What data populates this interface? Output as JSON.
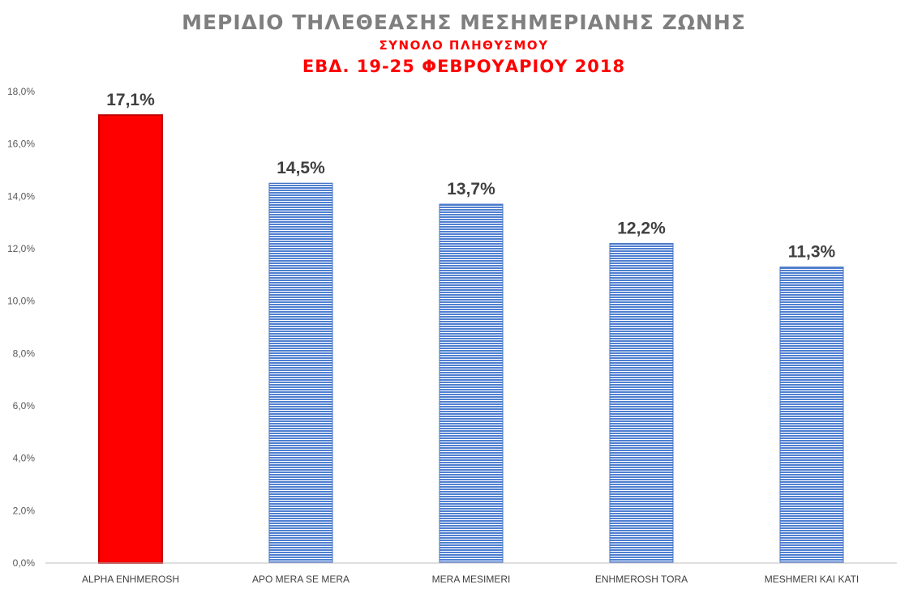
{
  "chart_data": {
    "type": "bar",
    "title": "ΜΕΡΙΔΙΟ ΤΗΛΕΘΕΑΣΗΣ ΜΕΣΗΜΕΡΙΑΝΗΣ ΖΩΝΗΣ",
    "subtitle": "ΣΥΝΟΛΟ ΠΛΗΘΥΣΜΟΥ",
    "subtitle2": "ΕΒΔ. 19-25 ΦΕΒΡΟΥΑΡΙΟΥ 2018",
    "categories": [
      "ALPHA ENHMEROSH",
      "APO MERA SE MERA",
      "MERA MESIMERI",
      "ENHMEROSH TORA",
      "MESHMERI KAI KATI"
    ],
    "values": [
      17.1,
      14.5,
      13.7,
      12.2,
      11.3
    ],
    "data_labels": [
      "17,1%",
      "14,5%",
      "13,7%",
      "12,2%",
      "11,3%"
    ],
    "ylim": [
      0,
      18
    ],
    "yticks": [
      "0,0%",
      "2,0%",
      "4,0%",
      "6,0%",
      "8,0%",
      "10,0%",
      "12,0%",
      "14,0%",
      "16,0%",
      "18,0%"
    ],
    "grid": false,
    "highlight_color": "#ff0000",
    "bar_color": "#4472c4"
  }
}
